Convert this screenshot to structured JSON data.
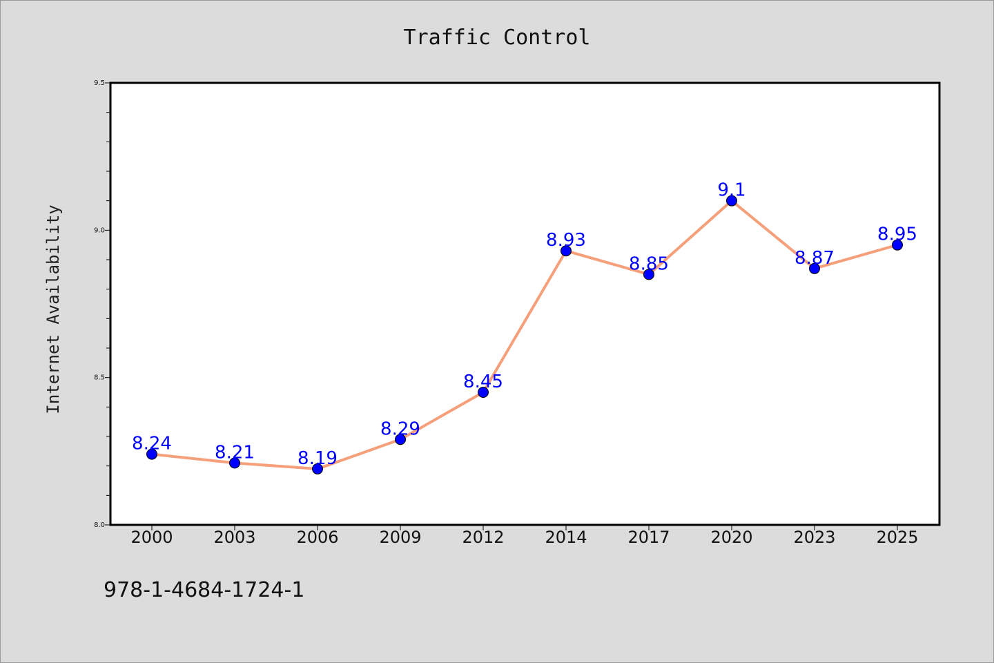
{
  "chart_data": {
    "type": "line",
    "title": "Traffic Control",
    "ylabel": "Internet Availability",
    "xlabel": "",
    "categories": [
      "2000",
      "2003",
      "2006",
      "2009",
      "2012",
      "2014",
      "2017",
      "2020",
      "2023",
      "2025"
    ],
    "series": [
      {
        "values": [
          8.24,
          8.21,
          8.19,
          8.29,
          8.45,
          8.93,
          8.85,
          9.1,
          8.87,
          8.95
        ],
        "labels": [
          "8.24",
          "8.21",
          "8.19",
          "8.29",
          "8.45",
          "8.93",
          "8.85",
          "9.1",
          "8.87",
          "8.95"
        ],
        "line_color": "#f5a07a",
        "marker_color": "#0000ff"
      }
    ],
    "ylim": [
      8.0,
      9.5
    ],
    "yticks": [
      "8.0",
      "8.5",
      "9.0",
      "9.5"
    ],
    "yminor_step": 0.1,
    "grid": false,
    "legend": "none"
  },
  "footer": {
    "isbn": "978-1-4684-1724-1"
  }
}
